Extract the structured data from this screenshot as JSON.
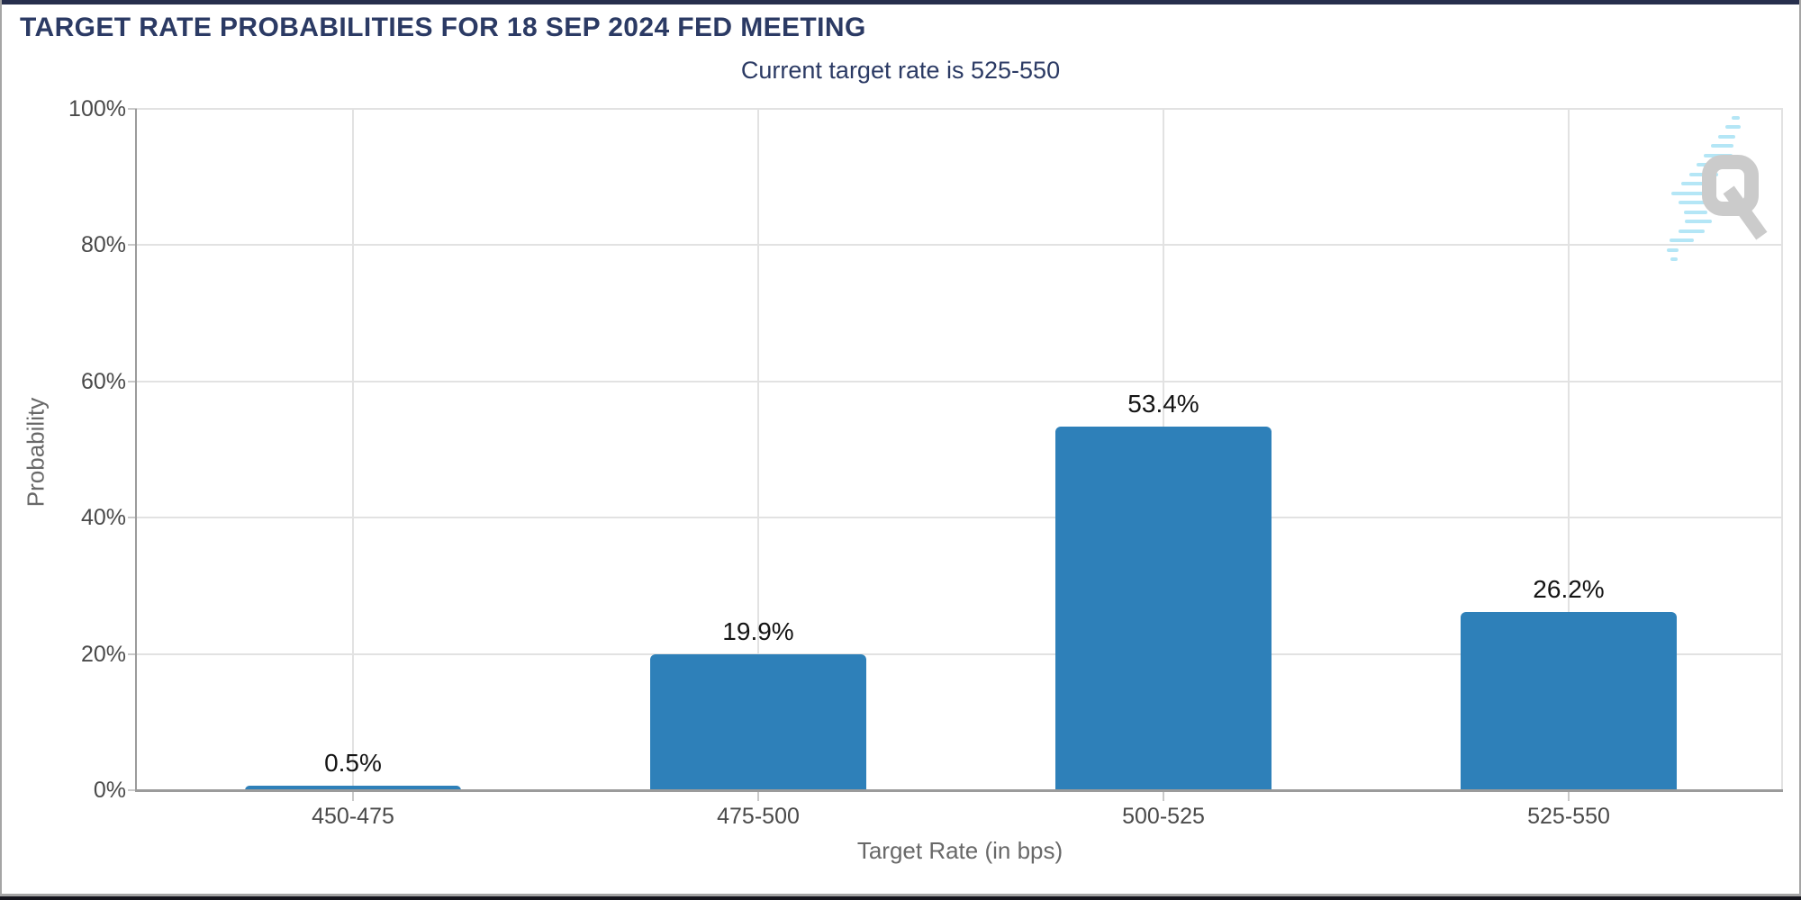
{
  "chart_data": {
    "type": "bar",
    "title": "TARGET RATE PROBABILITIES FOR 18 SEP 2024 FED MEETING",
    "subtitle": "Current target rate is 525-550",
    "categories": [
      "450-475",
      "475-500",
      "500-525",
      "525-550"
    ],
    "values": [
      0.5,
      19.9,
      53.4,
      26.2
    ],
    "value_labels": [
      "0.5%",
      "19.9%",
      "53.4%",
      "26.2%"
    ],
    "xlabel": "Target Rate (in bps)",
    "ylabel": "Probability",
    "ylim": [
      0,
      100
    ],
    "yticks": [
      0,
      20,
      40,
      60,
      80,
      100
    ],
    "ytick_labels": [
      "0%",
      "20%",
      "40%",
      "60%",
      "80%",
      "100%"
    ],
    "grid": "on",
    "legend": "none",
    "bar_color": "#2e80b9"
  },
  "icons": {
    "watermark": "q-logo-icon"
  },
  "colors": {
    "title_text": "#2b3a64",
    "subtitle_text": "#2b3a64",
    "axis_title_text": "#686868",
    "tick_label_text": "#4a4a4a",
    "value_label_text": "#141414",
    "grid_line": "#e2e2e2",
    "axis_line": "#9b9b9b",
    "top_border": "#272f4d",
    "bottom_border_dark": "#14141c",
    "frame_gray": "#a5a5a5",
    "watermark_gray": "#c7c7c7",
    "watermark_blue": "#aee4f6",
    "bar_color": "#2e80b9"
  }
}
